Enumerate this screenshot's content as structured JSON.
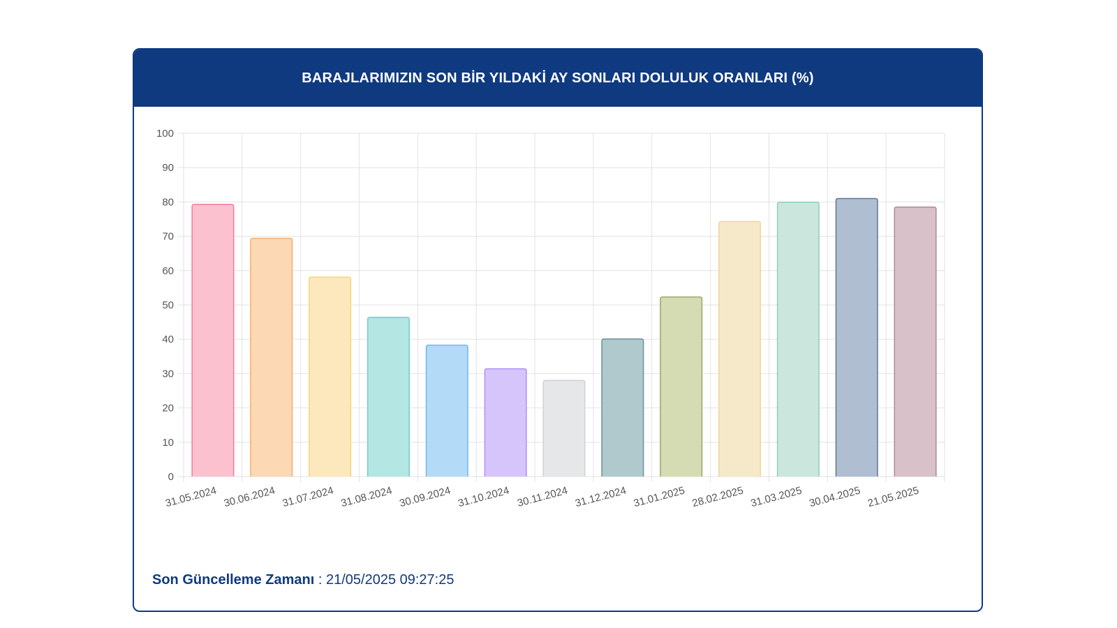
{
  "header": {
    "title": "BARAJLARIMIZIN SON BİR YILDAKİ AY SONLARI DOLULUK ORANLARI (%)"
  },
  "footer": {
    "label": "Son Güncelleme Zamanı",
    "separator": " : ",
    "value": "21/05/2025 09:27:25"
  },
  "colors": {
    "header_bg": "#0f3a80",
    "grid": "#e2e2e2",
    "tick_text": "#555555"
  },
  "chart_data": {
    "type": "bar",
    "categories": [
      "31.05.2024",
      "30.06.2024",
      "31.07.2024",
      "31.08.2024",
      "30.09.2024",
      "31.10.2024",
      "30.11.2024",
      "31.12.2024",
      "31.01.2025",
      "28.02.2025",
      "31.03.2025",
      "30.04.2025",
      "21.05.2025"
    ],
    "values": [
      79.3,
      69.4,
      58.1,
      46.4,
      38.3,
      31.4,
      28.0,
      40.1,
      52.3,
      74.3,
      79.9,
      81.0,
      78.5
    ],
    "ylim": [
      0,
      100
    ],
    "yticks": [
      0,
      10,
      20,
      30,
      40,
      50,
      60,
      70,
      80,
      90,
      100
    ],
    "grid": true,
    "legend": "none",
    "bar_fills": [
      "#fcc1cf",
      "#fdd8b4",
      "#fde8bd",
      "#b4e6e4",
      "#b3dbf7",
      "#d6c5fb",
      "#e6e7e9",
      "#b0c9cd",
      "#d5dcb3",
      "#f6e9c9",
      "#cbe7dd",
      "#afbed1",
      "#d8c1c8"
    ],
    "bar_strokes": [
      "#f87a9a",
      "#f8ad6a",
      "#f9d37a",
      "#6dcfcb",
      "#6cb9ee",
      "#b08ef7",
      "#cfd1d5",
      "#6a9198",
      "#9aa860",
      "#efd69a",
      "#8fcfb9",
      "#5f7797",
      "#b08a96"
    ]
  }
}
